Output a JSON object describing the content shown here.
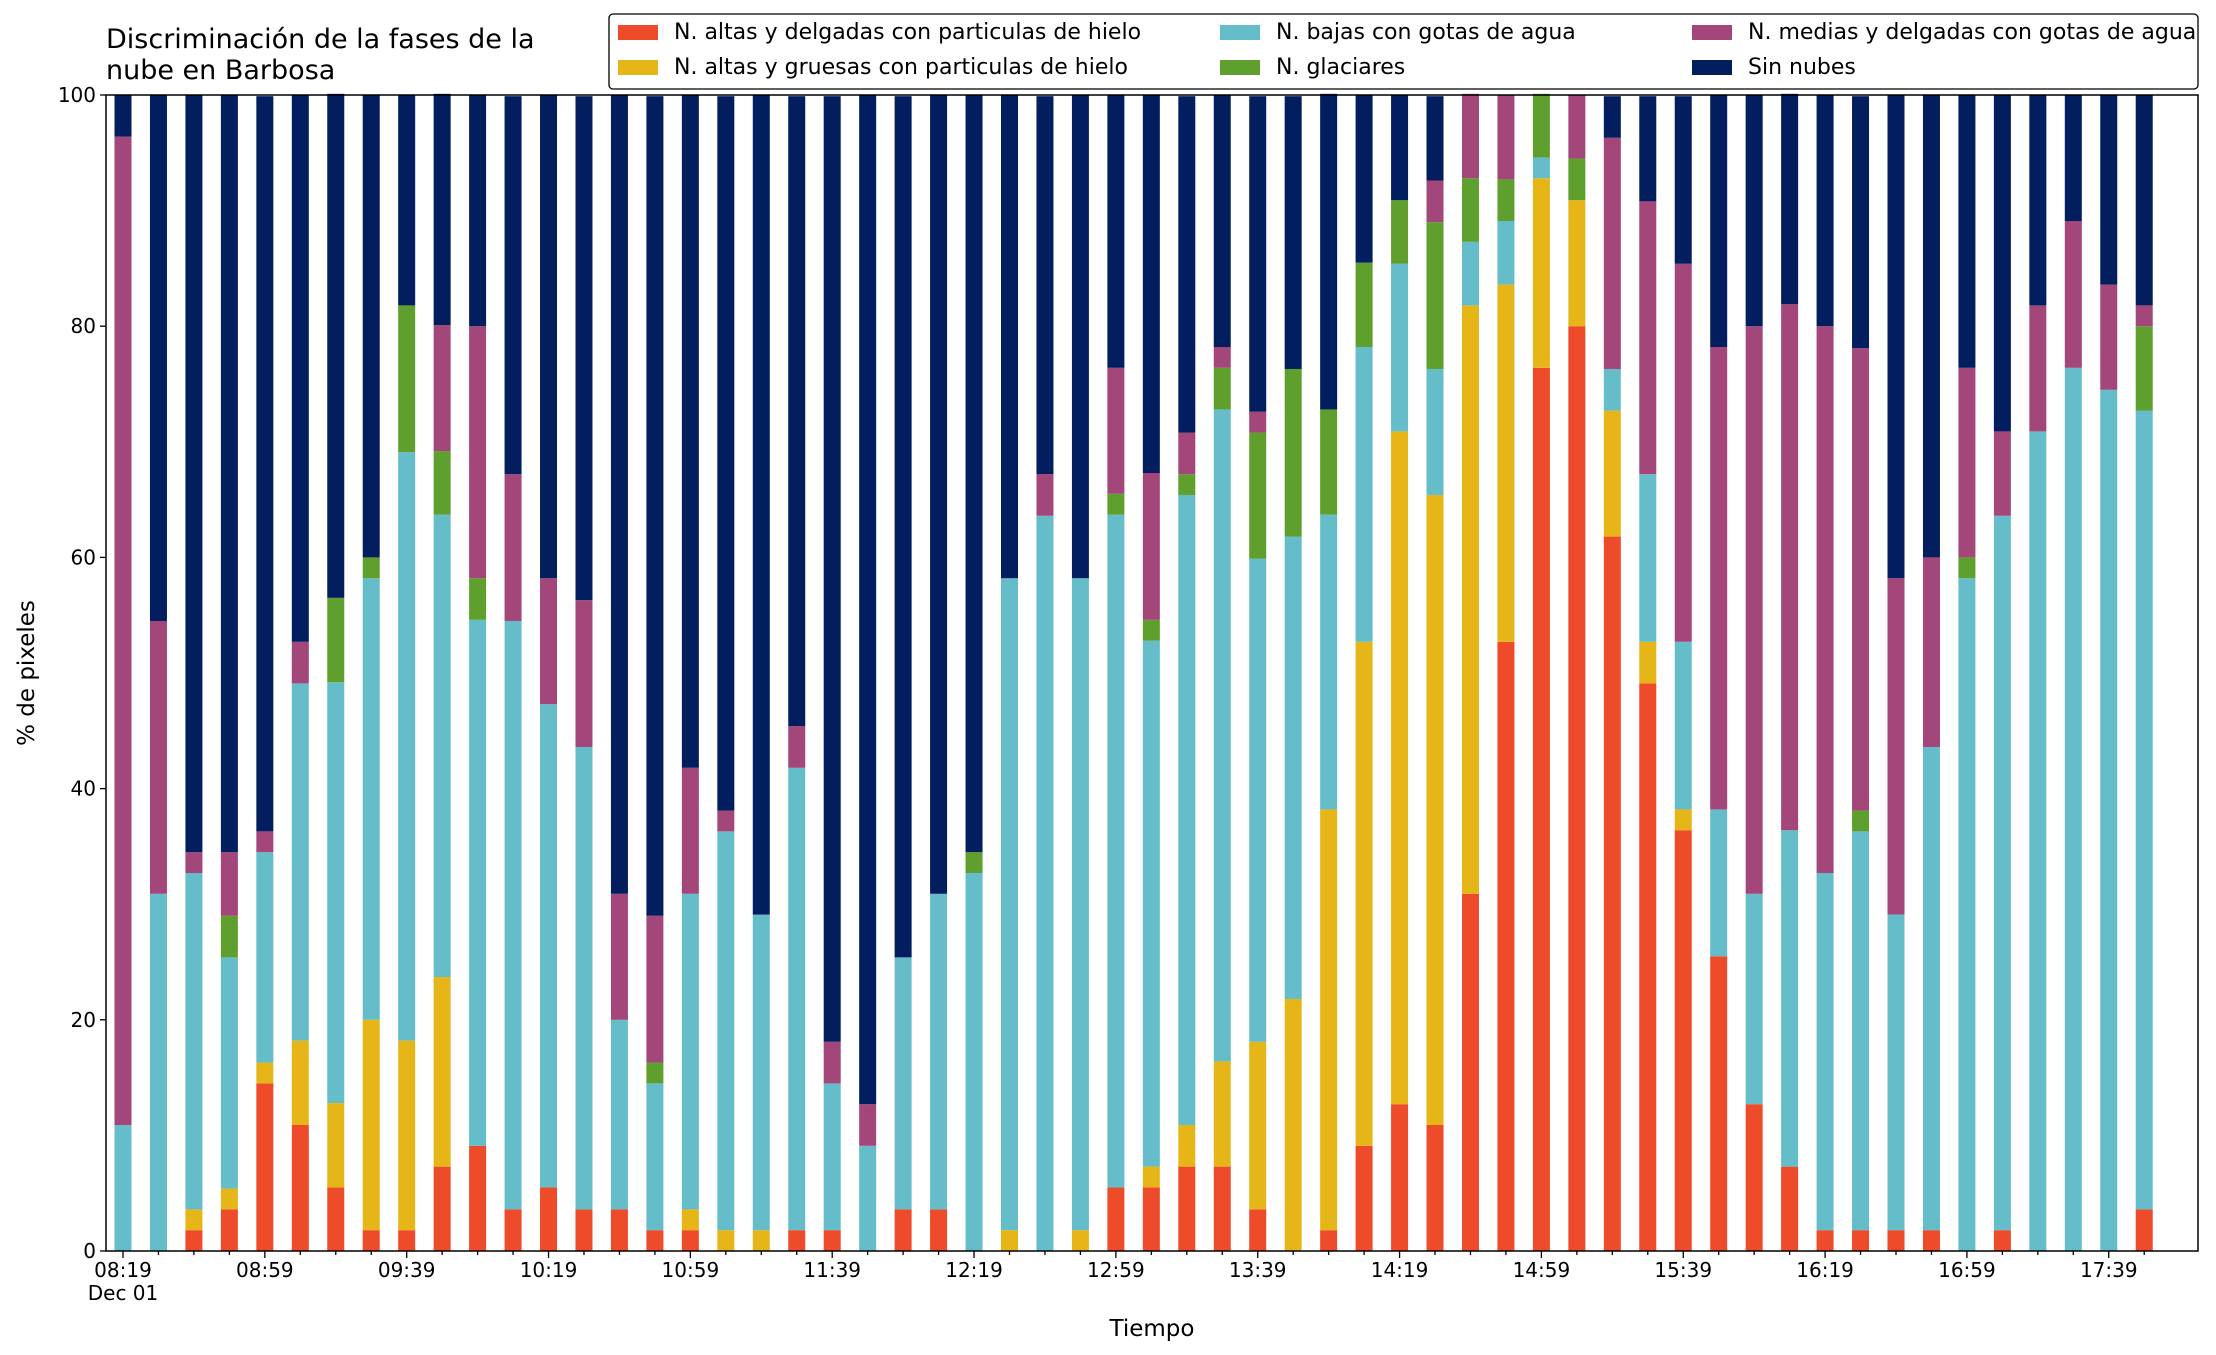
{
  "chart_data": {
    "type": "stacked_bar",
    "title": "Discriminación de la fases de la\nnube en Barbosa",
    "xlabel": "Tiempo",
    "ylabel": "% de pixeles",
    "categories": [
      "08:19\nDec 01",
      null,
      null,
      null,
      "08:59",
      null,
      null,
      null,
      "09:39",
      null,
      null,
      null,
      "10:19",
      null,
      null,
      null,
      "10:59",
      null,
      null,
      null,
      "11:39",
      null,
      null,
      null,
      "12:19",
      null,
      null,
      null,
      "12:59",
      null,
      null,
      null,
      "13:39",
      null,
      null,
      null,
      "14:19",
      null,
      null,
      null,
      "14:59",
      null,
      null,
      null,
      "15:39",
      null,
      null,
      null,
      "16:19",
      null,
      null,
      null,
      "16:59",
      null,
      null,
      null,
      "17:39",
      null
    ],
    "ylim": [
      0,
      100
    ],
    "yticks": [
      0,
      20,
      40,
      60,
      80,
      100
    ],
    "series": [
      {
        "name": "N. altas y delgadas con particulas de hielo",
        "color": "#ee4b2b",
        "values": [
          0,
          0,
          1.8,
          3.6,
          14.5,
          10.9,
          5.5,
          1.8,
          1.8,
          7.3,
          9.1,
          3.6,
          5.5,
          3.6,
          3.6,
          1.8,
          1.8,
          0,
          0,
          1.8,
          1.8,
          0,
          3.6,
          3.6,
          0,
          0,
          0,
          0,
          5.5,
          5.5,
          7.3,
          7.3,
          3.6,
          0,
          1.8,
          9.1,
          12.7,
          10.9,
          30.9,
          52.7,
          76.4,
          80,
          61.8,
          49.1,
          36.4,
          25.5,
          12.7,
          7.3,
          1.8,
          1.8,
          1.8,
          1.8,
          0,
          1.8,
          0,
          0,
          0,
          3.6
        ]
      },
      {
        "name": "N. altas y gruesas con particulas de hielo",
        "color": "#e6b619",
        "values": [
          0,
          0,
          1.8,
          1.8,
          1.8,
          7.3,
          7.3,
          18.2,
          16.4,
          16.4,
          0,
          0,
          0,
          0,
          0,
          0,
          1.8,
          1.8,
          1.8,
          0,
          0,
          0,
          0,
          0,
          0,
          1.8,
          0,
          1.8,
          0,
          1.8,
          3.6,
          9.1,
          14.5,
          21.8,
          36.4,
          43.6,
          58.2,
          54.5,
          50.9,
          30.9,
          16.4,
          10.9,
          10.9,
          3.6,
          1.8,
          0,
          0,
          0,
          0,
          0,
          0,
          0,
          0,
          0,
          0,
          0,
          0,
          0
        ]
      },
      {
        "name": "N. bajas con gotas de agua",
        "color": "#65bdc9",
        "values": [
          10.9,
          30.9,
          29.1,
          20,
          18.2,
          30.9,
          36.4,
          38.2,
          50.9,
          40,
          45.5,
          50.9,
          41.8,
          40,
          16.4,
          12.7,
          27.3,
          34.5,
          27.3,
          40,
          12.7,
          9.1,
          21.8,
          27.3,
          32.7,
          56.4,
          63.6,
          56.4,
          58.2,
          45.5,
          54.5,
          56.4,
          41.8,
          40,
          25.5,
          25.5,
          14.5,
          10.9,
          5.5,
          5.5,
          1.8,
          0,
          3.6,
          14.5,
          14.5,
          12.7,
          18.2,
          29.1,
          30.9,
          34.5,
          27.3,
          41.8,
          58.2,
          61.8,
          70.9,
          76.4,
          74.5,
          69.1
        ]
      },
      {
        "name": "N. glaciares",
        "color": "#5f9f2d",
        "values": [
          0,
          0,
          0,
          3.6,
          0,
          0,
          7.3,
          1.8,
          12.7,
          5.5,
          3.6,
          0,
          0,
          0,
          0,
          1.8,
          0,
          0,
          0,
          0,
          0,
          0,
          0,
          0,
          1.8,
          0,
          0,
          0,
          1.8,
          1.8,
          1.8,
          3.6,
          10.9,
          14.5,
          9.1,
          7.3,
          5.5,
          12.7,
          5.5,
          3.6,
          5.5,
          3.6,
          0,
          0,
          0,
          0,
          0,
          0,
          0,
          1.8,
          0,
          0,
          1.8,
          0,
          0,
          0,
          0,
          7.3
        ]
      },
      {
        "name": "N. medias y delgadas con gotas de agua",
        "color": "#a34679",
        "values": [
          85.5,
          23.6,
          1.8,
          5.5,
          1.8,
          3.6,
          0,
          0,
          0,
          10.9,
          21.8,
          12.7,
          10.9,
          12.7,
          10.9,
          12.7,
          10.9,
          1.8,
          0,
          3.6,
          3.6,
          3.6,
          0,
          0,
          0,
          0,
          3.6,
          0,
          10.9,
          12.7,
          3.6,
          1.8,
          1.8,
          0,
          0,
          0,
          0,
          3.6,
          7.3,
          7.3,
          0,
          5.5,
          20,
          23.6,
          32.7,
          40,
          49.1,
          45.5,
          47.3,
          40,
          29.1,
          16.4,
          16.4,
          7.3,
          10.9,
          12.7,
          9.1,
          1.8
        ]
      },
      {
        "name": "Sin nubes",
        "color": "#021e5f",
        "values": [
          3.6,
          45.5,
          65.5,
          65.5,
          63.6,
          47.3,
          43.6,
          40,
          18.2,
          20,
          20,
          32.7,
          41.8,
          43.6,
          69.1,
          70.9,
          58.2,
          61.8,
          70.9,
          54.5,
          81.8,
          87.3,
          74.5,
          69.1,
          65.5,
          41.8,
          32.7,
          41.8,
          23.6,
          32.7,
          29.1,
          21.8,
          27.3,
          23.6,
          27.3,
          14.5,
          9.1,
          7.3,
          0,
          0,
          0,
          0,
          3.6,
          9.1,
          14.5,
          21.8,
          20,
          18.2,
          20,
          21.8,
          41.8,
          40,
          23.6,
          29.1,
          18.2,
          10.9,
          16.4,
          18.2
        ]
      }
    ]
  }
}
